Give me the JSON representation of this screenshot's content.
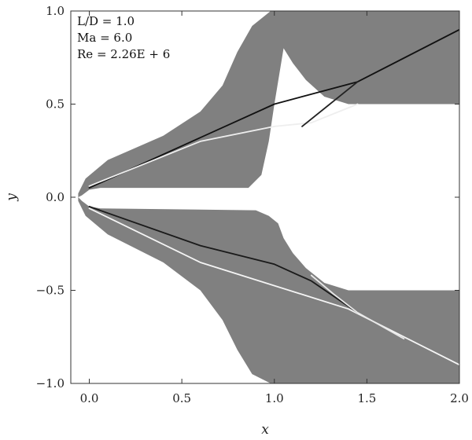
{
  "chart_data": {
    "type": "heatmap",
    "xlabel": "x",
    "ylabel": "y",
    "xlim": [
      -0.1,
      2.0
    ],
    "ylim": [
      -1.0,
      1.0
    ],
    "x_ticks": [
      "0.0",
      "0.5",
      "1.0",
      "1.5",
      "2.0"
    ],
    "x_tick_values": [
      0.0,
      0.5,
      1.0,
      1.5,
      2.0
    ],
    "y_ticks": [
      "1.0",
      "0.5",
      "0.0",
      "−0.5",
      "−1.0"
    ],
    "y_tick_values": [
      1.0,
      0.5,
      0.0,
      -0.5,
      -1.0
    ],
    "annotations": [
      "L/D = 1.0",
      "Ma = 6.0",
      "Re = 2.26E + 6"
    ],
    "field_color": "#808080",
    "upper_boundary": {
      "outer": [
        [
          -0.06,
          0.02
        ],
        [
          -0.02,
          0.1
        ],
        [
          0.1,
          0.2
        ],
        [
          0.4,
          0.33
        ],
        [
          0.6,
          0.46
        ],
        [
          0.72,
          0.6
        ],
        [
          0.8,
          0.78
        ],
        [
          0.88,
          0.92
        ],
        [
          0.98,
          1.0
        ],
        [
          2.0,
          1.0
        ]
      ],
      "inner": [
        [
          2.0,
          0.5
        ],
        [
          1.4,
          0.5
        ],
        [
          1.27,
          0.54
        ],
        [
          1.17,
          0.63
        ],
        [
          1.1,
          0.72
        ],
        [
          1.05,
          0.8
        ]
      ],
      "wall": [
        [
          1.05,
          0.8
        ],
        [
          1.0,
          0.5
        ],
        [
          0.97,
          0.3
        ],
        [
          0.93,
          0.12
        ],
        [
          0.86,
          0.05
        ],
        [
          0.06,
          0.05
        ],
        [
          0.0,
          0.04
        ],
        [
          -0.04,
          0.01
        ],
        [
          -0.06,
          0.0
        ]
      ]
    },
    "lower_boundary": {
      "outer": [
        [
          -0.06,
          -0.02
        ],
        [
          -0.02,
          -0.1
        ],
        [
          0.1,
          -0.2
        ],
        [
          0.4,
          -0.35
        ],
        [
          0.6,
          -0.5
        ],
        [
          0.72,
          -0.66
        ],
        [
          0.8,
          -0.82
        ],
        [
          0.88,
          -0.95
        ],
        [
          0.98,
          -1.0
        ],
        [
          2.0,
          -1.0
        ]
      ],
      "inner": [
        [
          2.0,
          -0.5
        ],
        [
          1.4,
          -0.5
        ],
        [
          1.27,
          -0.46
        ],
        [
          1.17,
          -0.38
        ],
        [
          1.1,
          -0.3
        ],
        [
          1.05,
          -0.22
        ]
      ],
      "wall": [
        [
          1.05,
          -0.22
        ],
        [
          1.02,
          -0.14
        ],
        [
          0.97,
          -0.1
        ],
        [
          0.9,
          -0.07
        ],
        [
          0.06,
          -0.06
        ],
        [
          0.0,
          -0.05
        ],
        [
          -0.04,
          -0.02
        ],
        [
          -0.06,
          0.0
        ]
      ]
    },
    "shocks": [
      {
        "name": "upper-oblique-shock",
        "color": "#111111",
        "points": [
          [
            0.0,
            0.05
          ],
          [
            1.0,
            0.5
          ],
          [
            1.45,
            0.62
          ],
          [
            2.0,
            0.9
          ]
        ]
      },
      {
        "name": "upper-bright-shock",
        "color": "#eeeeee",
        "points": [
          [
            0.0,
            0.06
          ],
          [
            0.6,
            0.3
          ],
          [
            1.0,
            0.38
          ],
          [
            1.2,
            0.4
          ],
          [
            1.45,
            0.5
          ]
        ]
      },
      {
        "name": "upper-reattachment-shock",
        "color": "#222222",
        "points": [
          [
            1.15,
            0.38
          ],
          [
            1.3,
            0.5
          ],
          [
            1.45,
            0.62
          ]
        ]
      },
      {
        "name": "lower-bright-shock",
        "color": "#f5f5f5",
        "points": [
          [
            0.0,
            -0.06
          ],
          [
            0.6,
            -0.35
          ],
          [
            1.4,
            -0.6
          ],
          [
            2.0,
            -0.9
          ]
        ]
      },
      {
        "name": "lower-dark-shock",
        "color": "#1a1a1a",
        "points": [
          [
            0.0,
            -0.05
          ],
          [
            0.6,
            -0.26
          ],
          [
            1.0,
            -0.36
          ],
          [
            1.2,
            -0.45
          ],
          [
            1.45,
            -0.62
          ]
        ]
      },
      {
        "name": "lower-reattachment-shock",
        "color": "#e8e8e8",
        "points": [
          [
            1.2,
            -0.42
          ],
          [
            1.32,
            -0.52
          ],
          [
            1.45,
            -0.62
          ],
          [
            1.7,
            -0.76
          ]
        ]
      }
    ]
  }
}
